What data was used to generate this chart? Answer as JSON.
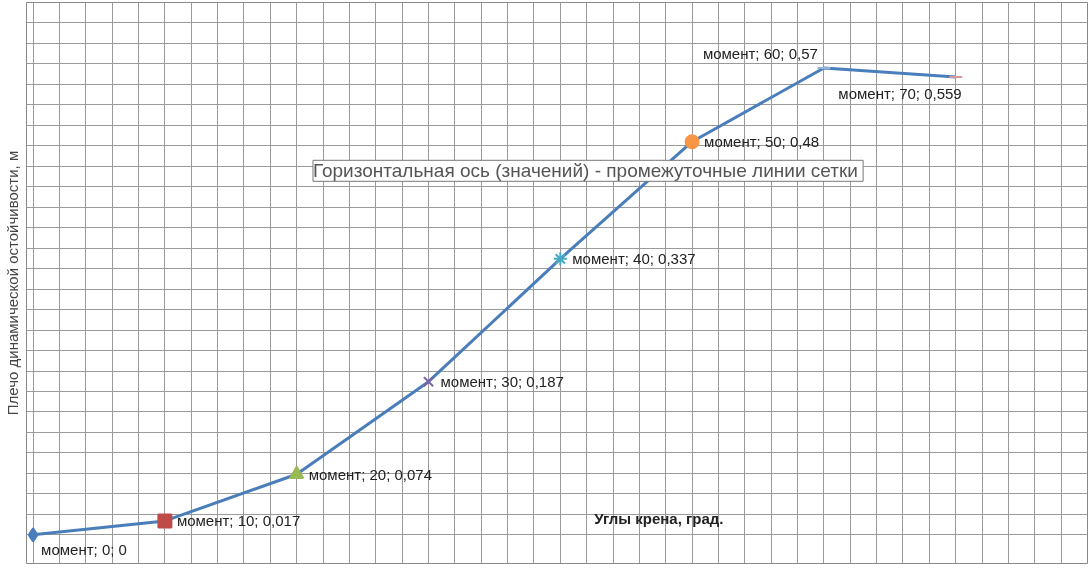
{
  "chart_data": {
    "type": "line",
    "ylabel": "Плечо динамической остойчивости, м",
    "xlabel": "Углы крена, град.",
    "categories": [
      null,
      null,
      null,
      null,
      null,
      null,
      null,
      null
    ],
    "series": [
      {
        "color": "#4a7ebb",
        "values": [
          0,
          0.017,
          0.074,
          0.187,
          0.337,
          0.48,
          0.57,
          0.559
        ],
        "colors": [
          "#4a7ebb",
          "#be4b48",
          "#98b954",
          "#7d60a0",
          "#46aac5",
          "#f79646",
          "#95b3d7",
          "#d99694"
        ],
        "marker": [
          "diamond",
          "square",
          "triangle",
          "x",
          "asterisk",
          "circle",
          "dash",
          "dash"
        ],
        "value_labels": [
          "момент; 0; 0",
          "момент; 10; 0,017",
          "момент; 20; 0,074",
          "момент; 30; 0,187",
          "момент; 40; 0,337",
          "момент; 50; 0,48",
          "момент; 60; 0,57",
          "момент; 70; 0,559"
        ]
      }
    ],
    "ylim": [
      -0.035,
      0.65
    ],
    "yticks": [
      {
        "value": 0,
        "label": null
      },
      {
        "value": 0.025,
        "label": null
      },
      {
        "value": 0.05,
        "label": null
      },
      {
        "value": 0.075,
        "label": null
      },
      {
        "value": 0.1,
        "label": null
      },
      {
        "value": 0.125,
        "label": null
      },
      {
        "value": 0.15,
        "label": null
      },
      {
        "value": 0.175,
        "label": null
      },
      {
        "value": 0.2,
        "label": null
      },
      {
        "value": 0.225,
        "label": null
      },
      {
        "value": 0.25,
        "label": null
      },
      {
        "value": 0.275,
        "label": null
      },
      {
        "value": 0.3,
        "label": null
      },
      {
        "value": 0.325,
        "label": null
      },
      {
        "value": 0.35,
        "label": null
      },
      {
        "value": 0.375,
        "label": null
      },
      {
        "value": 0.4,
        "label": null
      },
      {
        "value": 0.425,
        "label": null
      },
      {
        "value": 0.45,
        "label": null
      },
      {
        "value": 0.475,
        "label": null
      },
      {
        "value": 0.5,
        "label": null
      },
      {
        "value": 0.525,
        "label": null
      },
      {
        "value": 0.55,
        "label": null
      },
      {
        "value": 0.575,
        "label": null
      },
      {
        "value": 0.6,
        "label": null
      },
      {
        "value": 0.625,
        "label": null
      }
    ],
    "tick_labels": false,
    "grid": true,
    "line_style": "solid",
    "annotations": [
      "Горизонтальная ось (значений)  - промежуточные линии сетки"
    ]
  }
}
